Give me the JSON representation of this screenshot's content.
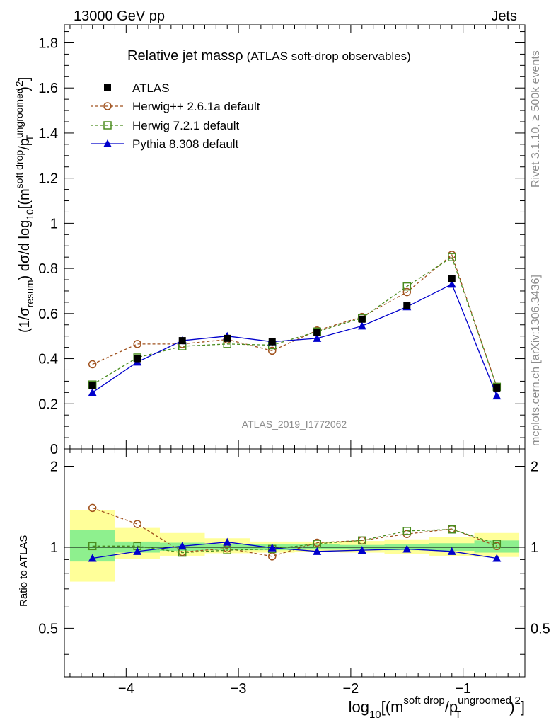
{
  "header": {
    "left": "13000 GeV pp",
    "right": "Jets"
  },
  "side": {
    "rivet": "Rivet 3.1.10, ≥ 500k events",
    "mcplots": "mcplots.cern.ch [arXiv:1306.3436]"
  },
  "chart_data": [
    {
      "type": "line",
      "title": "Relative jet mass",
      "title_symbol": "ρ",
      "title_suffix": "(ATLAS soft-drop observables)",
      "ylabel": "(1/σresum) dσ/d log10[(m^soft drop/pT^ungroomed)^2]",
      "xlabel": "log10[(m^soft drop/pT^ungroomed)^2]",
      "analysis_tag": "ATLAS_2019_I1772062",
      "xlim": [
        -4.55,
        -0.45
      ],
      "ylim": [
        0,
        1.88
      ],
      "yticks": [
        0,
        0.2,
        0.4,
        0.6,
        0.8,
        1,
        1.2,
        1.4,
        1.6,
        1.8
      ],
      "ytick_labels": [
        "0",
        "0.2",
        "0.4",
        "0.6",
        "0.8",
        "1",
        "1.2",
        "1.4",
        "1.6",
        "1.8"
      ],
      "legend_position": "top-left",
      "x": [
        -4.3,
        -3.9,
        -3.5,
        -3.1,
        -2.7,
        -2.3,
        -1.9,
        -1.5,
        -1.1,
        -0.7
      ],
      "series": [
        {
          "name": "ATLAS",
          "color": "#000000",
          "marker": "filled-square",
          "values": [
            0.28,
            0.4,
            0.48,
            0.49,
            0.475,
            0.515,
            0.575,
            0.635,
            0.755,
            0.27
          ]
        },
        {
          "name": "Herwig++ 2.6.1a default",
          "color": "#a0521e",
          "marker": "open-circle",
          "dashed": true,
          "values": [
            0.375,
            0.465,
            0.465,
            0.485,
            0.435,
            0.525,
            0.585,
            0.695,
            0.86,
            0.275
          ]
        },
        {
          "name": "Herwig 7.2.1 default",
          "color": "#4a8c1f",
          "marker": "open-square",
          "dashed": true,
          "values": [
            0.285,
            0.405,
            0.455,
            0.465,
            0.46,
            0.52,
            0.58,
            0.72,
            0.85,
            0.275
          ]
        },
        {
          "name": "Pythia 8.308 default",
          "color": "#0000cc",
          "marker": "filled-triangle",
          "values": [
            0.25,
            0.385,
            0.48,
            0.5,
            0.475,
            0.49,
            0.545,
            0.63,
            0.73,
            0.235
          ]
        }
      ]
    },
    {
      "type": "line",
      "ylabel": "Ratio to ATLAS",
      "xlabel": "log10[(m^soft drop/pT^ungroomed)^2]",
      "xlim": [
        -4.55,
        -0.45
      ],
      "ylim": [
        0.33,
        2.32
      ],
      "log_y": true,
      "yticks": [
        0.5,
        1,
        2
      ],
      "ytick_labels": [
        "0.5",
        "1",
        "2"
      ],
      "xticks": [
        -4,
        -3,
        -2,
        -1
      ],
      "xtick_labels": [
        "−4",
        "−3",
        "−2",
        "−1"
      ],
      "x": [
        -4.3,
        -3.9,
        -3.5,
        -3.1,
        -2.7,
        -2.3,
        -1.9,
        -1.5,
        -1.1,
        -0.7
      ],
      "bin_edges": [
        -4.5,
        -4.1,
        -3.7,
        -3.3,
        -2.9,
        -2.5,
        -2.1,
        -1.7,
        -1.3,
        -0.9,
        -0.5
      ],
      "uncertainty_bands": {
        "inner_color": "#8ef08e",
        "outer_color": "#ffff99",
        "inner": [
          [
            0.885,
            1.16
          ],
          [
            0.955,
            1.05
          ],
          [
            0.97,
            1.04
          ],
          [
            0.975,
            1.03
          ],
          [
            0.975,
            1.025
          ],
          [
            0.98,
            1.025
          ],
          [
            0.98,
            1.02
          ],
          [
            0.975,
            1.03
          ],
          [
            0.97,
            1.035
          ],
          [
            0.955,
            1.06
          ]
        ],
        "outer": [
          [
            0.745,
            1.37
          ],
          [
            0.905,
            1.18
          ],
          [
            0.93,
            1.13
          ],
          [
            0.95,
            1.08
          ],
          [
            0.955,
            1.05
          ],
          [
            0.96,
            1.05
          ],
          [
            0.955,
            1.055
          ],
          [
            0.945,
            1.07
          ],
          [
            0.93,
            1.09
          ],
          [
            0.92,
            1.13
          ]
        ]
      },
      "series": [
        {
          "name": "Herwig++ 2.6.1a default",
          "color": "#a0521e",
          "marker": "open-circle",
          "dashed": true,
          "values": [
            1.4,
            1.22,
            0.96,
            0.99,
            0.925,
            1.04,
            1.06,
            1.12,
            1.17,
            1.01
          ]
        },
        {
          "name": "Herwig 7.2.1 default",
          "color": "#4a8c1f",
          "marker": "open-square",
          "dashed": true,
          "values": [
            1.01,
            1.01,
            0.955,
            0.975,
            0.985,
            1.03,
            1.06,
            1.15,
            1.165,
            1.03
          ]
        },
        {
          "name": "Pythia 8.308 default",
          "color": "#0000cc",
          "marker": "filled-triangle",
          "values": [
            0.91,
            0.965,
            1.01,
            1.045,
            0.995,
            0.965,
            0.975,
            0.985,
            0.965,
            0.91
          ]
        }
      ]
    }
  ]
}
